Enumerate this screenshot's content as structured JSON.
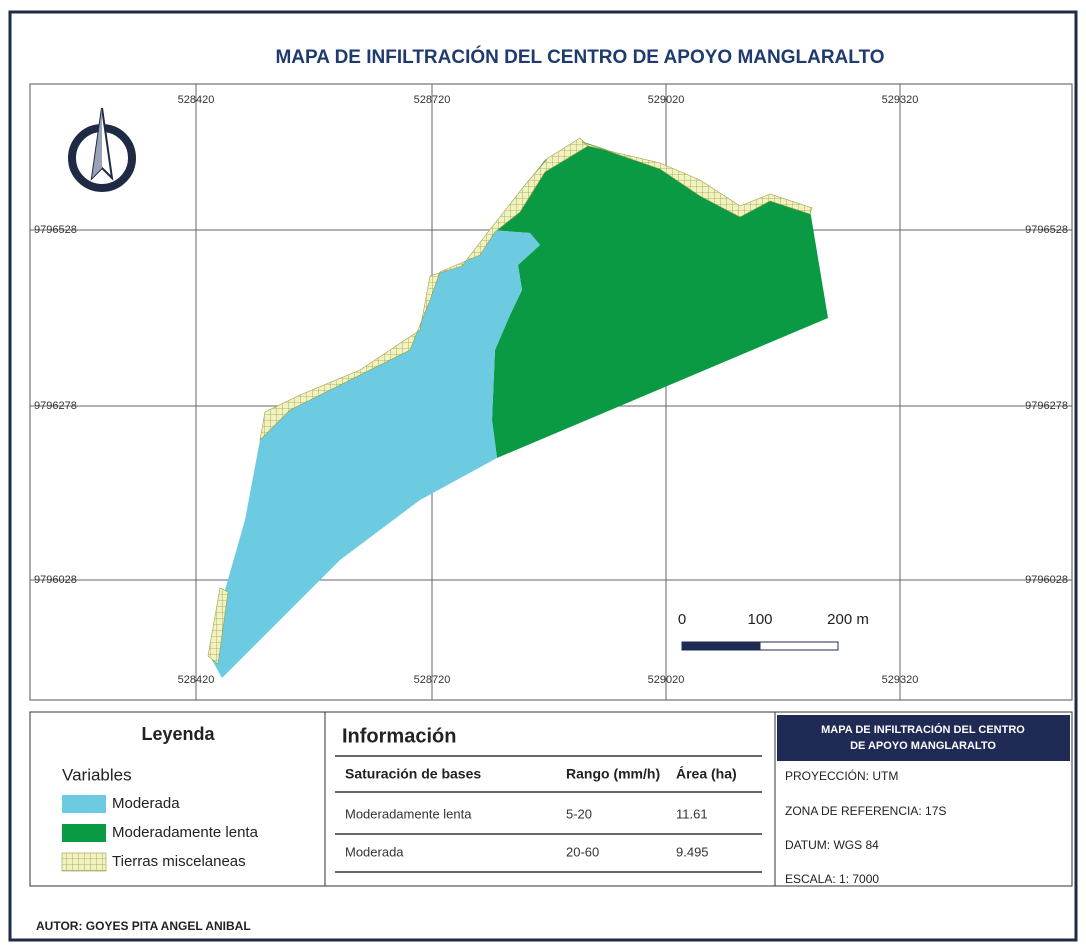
{
  "title": "MAPA DE INFILTRACIÓN DEL CENTRO DE APOYO MANGLARALTO",
  "grid": {
    "x_labels": [
      "528420",
      "528720",
      "529020",
      "529320"
    ],
    "y_labels": [
      "9796528",
      "9796278",
      "9796028"
    ]
  },
  "scale_bar": {
    "labels": [
      "0",
      "100",
      "200 m"
    ]
  },
  "legend": {
    "title": "Leyenda",
    "subtitle": "Variables",
    "items": [
      "Moderada",
      "Moderadamente lenta",
      "Tierras miscelaneas"
    ]
  },
  "info": {
    "title": "Información",
    "columns": [
      "Saturación de bases",
      "Rango (mm/h)",
      "Área (ha)"
    ],
    "rows": [
      [
        "Moderadamente lenta",
        "5-20",
        "11.61"
      ],
      [
        "Moderada",
        "20-60",
        "9.495"
      ]
    ]
  },
  "map_box": {
    "title_lines": [
      "MAPA DE INFILTRACIÓN DEL CENTRO",
      "DE APOYO MANGLARALTO"
    ],
    "lines": [
      "PROYECCIÓN: UTM",
      "ZONA DE REFERENCIA: 17S",
      "DATUM: WGS 84",
      "ESCALA:  1: 7000"
    ]
  },
  "author": "AUTOR: GOYES PITA ANGEL ANIBAL"
}
